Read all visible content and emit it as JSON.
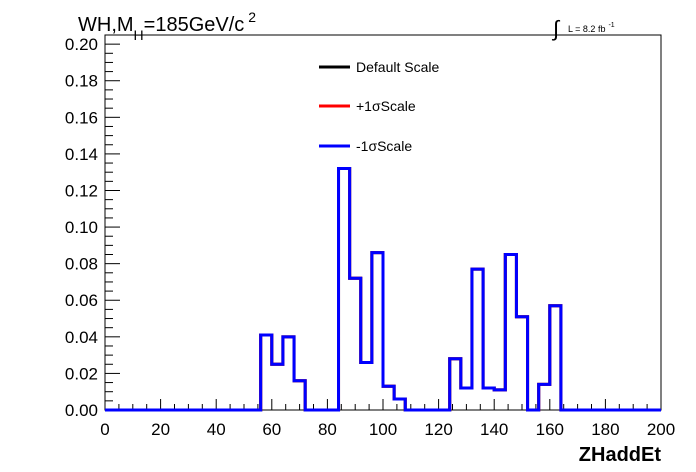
{
  "header": {
    "title_main": "WH,M",
    "title_sub": "H",
    "title_rest": "=185GeV/c",
    "title_sup": "2",
    "lumi_text": "L = 8.2 fb",
    "lumi_sup": "-1"
  },
  "legend": {
    "items": [
      {
        "label": "Default Scale",
        "color": "#000000"
      },
      {
        "label": "+1σScale",
        "color": "#ff0000"
      },
      {
        "label": "-1σScale",
        "color": "#0000ff"
      }
    ]
  },
  "chart_data": {
    "type": "line",
    "xlabel": "ZHaddEt",
    "ylabel": "",
    "xlim": [
      0,
      200
    ],
    "ylim": [
      0,
      0.205
    ],
    "x_ticks": [
      "0",
      "20",
      "40",
      "60",
      "80",
      "100",
      "120",
      "140",
      "160",
      "180",
      "200"
    ],
    "y_ticks": [
      "0.00",
      "0.02",
      "0.04",
      "0.06",
      "0.08",
      "0.10",
      "0.12",
      "0.14",
      "0.16",
      "0.18",
      "0.20"
    ],
    "bin_edges": [
      0,
      4,
      8,
      12,
      16,
      20,
      24,
      28,
      32,
      36,
      40,
      44,
      48,
      52,
      56,
      60,
      64,
      68,
      72,
      76,
      80,
      84,
      88,
      92,
      96,
      100,
      104,
      108,
      112,
      116,
      120,
      124,
      128,
      132,
      136,
      140,
      144,
      148,
      152,
      156,
      160,
      164,
      168,
      172,
      176,
      180,
      184,
      188,
      192,
      196,
      200
    ],
    "series": [
      {
        "name": "Default Scale",
        "color": "#000000",
        "values": [
          0,
          0,
          0,
          0,
          0,
          0,
          0,
          0,
          0,
          0,
          0,
          0,
          0,
          0,
          0.041,
          0.025,
          0.04,
          0.016,
          0,
          0,
          0,
          0.132,
          0.072,
          0.026,
          0.086,
          0.013,
          0.006,
          0,
          0,
          0,
          0,
          0.028,
          0.012,
          0.077,
          0.012,
          0.011,
          0.085,
          0.051,
          0,
          0.014,
          0.057,
          0,
          0,
          0,
          0,
          0,
          0,
          0,
          0,
          0
        ]
      },
      {
        "name": "+1σScale",
        "color": "#ff0000",
        "values": [
          0,
          0,
          0,
          0,
          0,
          0,
          0,
          0,
          0,
          0,
          0,
          0,
          0,
          0,
          0.041,
          0.025,
          0.04,
          0.016,
          0,
          0,
          0,
          0.132,
          0.072,
          0.026,
          0.086,
          0.013,
          0.006,
          0,
          0,
          0,
          0,
          0.028,
          0.012,
          0.077,
          0.012,
          0.011,
          0.085,
          0.051,
          0,
          0.014,
          0.057,
          0,
          0,
          0,
          0,
          0,
          0,
          0,
          0,
          0
        ]
      },
      {
        "name": "-1σScale",
        "color": "#0000ff",
        "values": [
          0,
          0,
          0,
          0,
          0,
          0,
          0,
          0,
          0,
          0,
          0,
          0,
          0,
          0,
          0.041,
          0.025,
          0.04,
          0.016,
          0,
          0,
          0,
          0.132,
          0.072,
          0.026,
          0.086,
          0.013,
          0.006,
          0,
          0,
          0,
          0,
          0.028,
          0.012,
          0.077,
          0.012,
          0.011,
          0.085,
          0.051,
          0,
          0.014,
          0.057,
          0,
          0,
          0,
          0,
          0,
          0,
          0,
          0,
          0
        ]
      }
    ]
  }
}
